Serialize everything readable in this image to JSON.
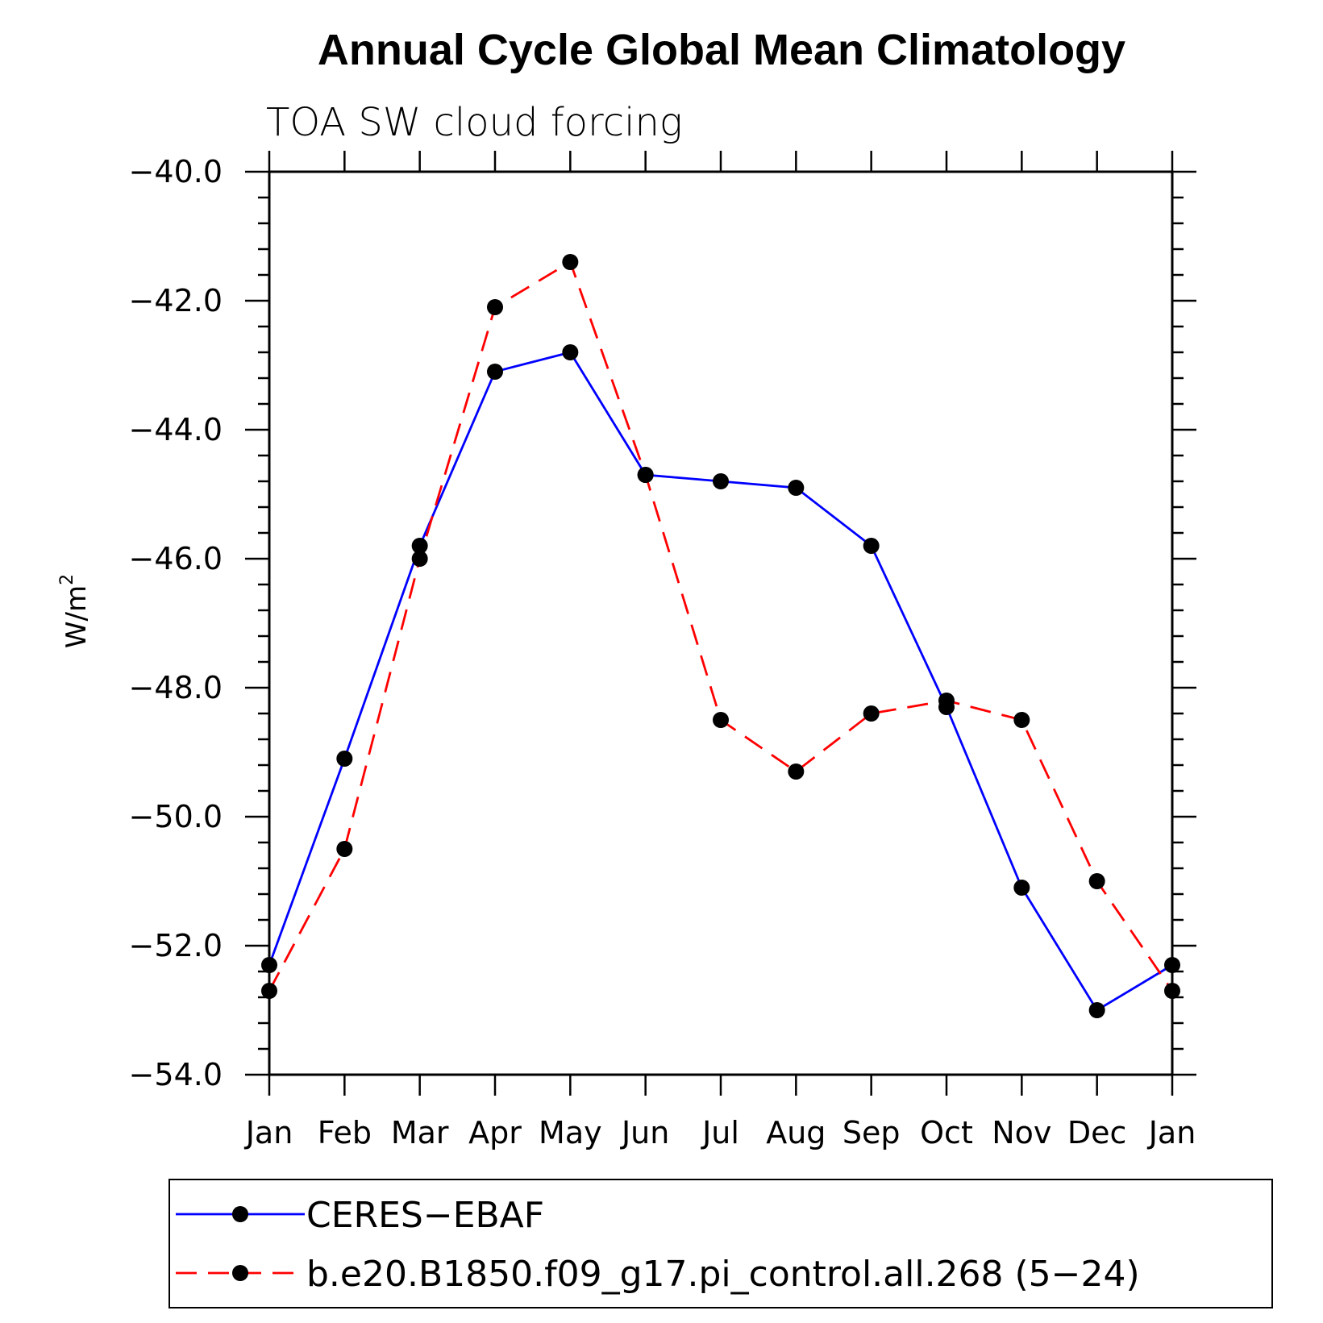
{
  "chart_data": {
    "type": "line",
    "title": "Annual Cycle Global Mean Climatology",
    "subtitle": "TOA SW cloud forcing",
    "ylabel": "W/m",
    "ylabel_superscript": "2",
    "xlabel": "",
    "categories": [
      "Jan",
      "Feb",
      "Mar",
      "Apr",
      "May",
      "Jun",
      "Jul",
      "Aug",
      "Sep",
      "Oct",
      "Nov",
      "Dec",
      "Jan"
    ],
    "ylim": [
      -54.0,
      -40.0
    ],
    "yticks": [
      -40.0,
      -42.0,
      -44.0,
      -46.0,
      -48.0,
      -50.0,
      -52.0,
      -54.0
    ],
    "ytick_labels": [
      "−40.0",
      "−42.0",
      "−44.0",
      "−46.0",
      "−48.0",
      "−50.0",
      "−52.0",
      "−54.0"
    ],
    "grid": false,
    "legend_placement": "bottom",
    "series": [
      {
        "name": "CERES−EBAF",
        "color": "#0000ff",
        "dash": "solid",
        "values": [
          -52.3,
          -49.1,
          -45.8,
          -43.1,
          -42.8,
          -44.7,
          -44.8,
          -44.9,
          -45.8,
          -48.3,
          -51.1,
          -53.0,
          -52.3
        ]
      },
      {
        "name": "b.e20.B1850.f09_g17.pi_control.all.268 (5−24)",
        "color": "#ff0000",
        "dash": "dashed",
        "values": [
          -52.7,
          -50.5,
          -46.0,
          -42.1,
          -41.4,
          -44.7,
          -48.5,
          -49.3,
          -48.4,
          -48.2,
          -48.5,
          -51.0,
          -52.7
        ]
      }
    ]
  }
}
